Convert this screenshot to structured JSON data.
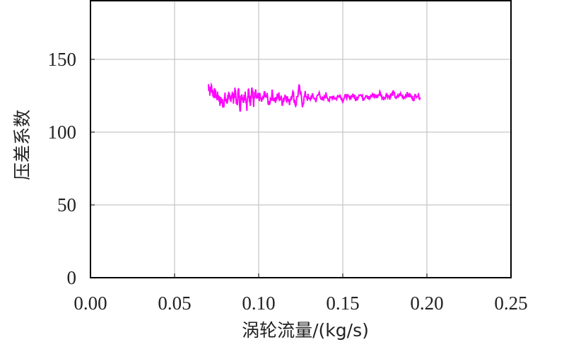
{
  "chart_data": {
    "type": "line",
    "title": "",
    "xlabel": "涡轮流量/(kg/s)",
    "ylabel": "压差系数",
    "xlim": [
      0,
      0.25
    ],
    "ylim": [
      0,
      190
    ],
    "x_ticks": [
      "0.00",
      "0.05",
      "0.10",
      "0.15",
      "0.20",
      "0.25"
    ],
    "y_ticks": [
      "0",
      "50",
      "100",
      "150"
    ],
    "grid": true,
    "legend": null,
    "series": [
      {
        "name": "压差系数",
        "color": "#ff00ff",
        "description": "Noisy trace starting near 133 at 0.070 kg/s, dipping to ~118-128 around 0.08-0.10, then settling to ~123-126 through 0.196 kg/s",
        "x": [
          0.07,
          0.071,
          0.072,
          0.073,
          0.074,
          0.075,
          0.076,
          0.077,
          0.078,
          0.079,
          0.08,
          0.081,
          0.082,
          0.083,
          0.084,
          0.085,
          0.086,
          0.087,
          0.088,
          0.089,
          0.09,
          0.091,
          0.092,
          0.093,
          0.094,
          0.095,
          0.096,
          0.097,
          0.098,
          0.099,
          0.1,
          0.102,
          0.104,
          0.106,
          0.108,
          0.11,
          0.112,
          0.114,
          0.116,
          0.118,
          0.12,
          0.122,
          0.124,
          0.126,
          0.128,
          0.13,
          0.132,
          0.134,
          0.136,
          0.138,
          0.14,
          0.142,
          0.144,
          0.146,
          0.148,
          0.15,
          0.152,
          0.154,
          0.156,
          0.158,
          0.16,
          0.162,
          0.164,
          0.166,
          0.168,
          0.17,
          0.172,
          0.174,
          0.176,
          0.178,
          0.18,
          0.182,
          0.184,
          0.186,
          0.188,
          0.19,
          0.192,
          0.194,
          0.196
        ],
        "values": [
          133,
          128,
          131,
          126,
          127,
          124,
          125,
          121,
          122,
          119,
          124,
          120,
          126,
          121,
          127,
          123,
          128,
          119,
          129,
          117,
          126,
          122,
          127,
          118,
          128,
          121,
          131,
          120,
          127,
          122,
          125,
          121,
          127,
          120,
          126,
          122,
          125,
          121,
          126,
          120,
          128,
          119,
          130,
          120,
          126,
          122,
          125,
          122,
          127,
          121,
          126,
          122,
          125,
          123,
          126,
          122,
          125,
          123,
          126,
          122,
          127,
          123,
          126,
          123,
          126,
          124,
          127,
          123,
          126,
          124,
          127,
          123,
          126,
          124,
          126,
          125,
          123,
          126,
          124
        ]
      }
    ]
  }
}
